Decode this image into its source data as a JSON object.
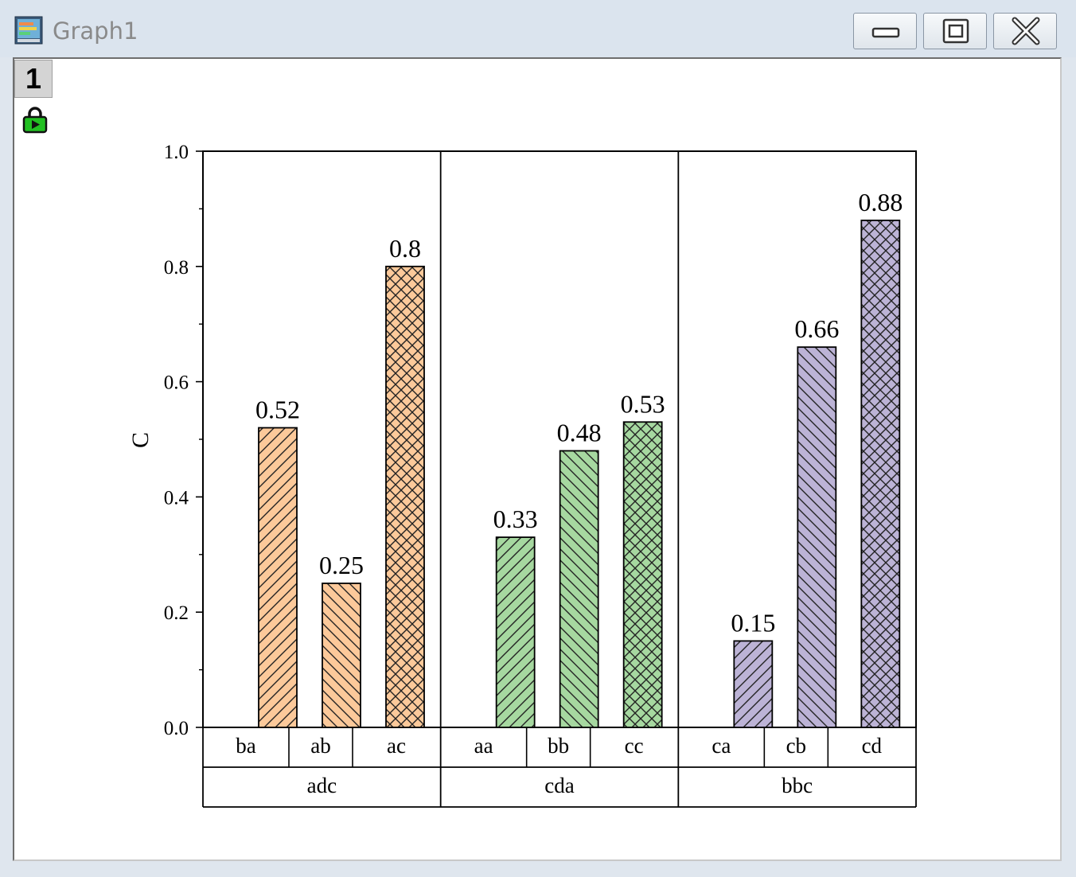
{
  "window": {
    "title": "Graph1",
    "layer_label": "1"
  },
  "chart_data": {
    "type": "bar",
    "ylabel": "C",
    "ylim": [
      0,
      1.0
    ],
    "yticks": [
      "0.0",
      "0.2",
      "0.4",
      "0.6",
      "0.8",
      "1.0"
    ],
    "groups": [
      {
        "name": "adc",
        "color": "#fcc99a",
        "bars": [
          {
            "category": "ba",
            "value": 0.52,
            "label": "0.52",
            "pattern": "diag-up"
          },
          {
            "category": "ab",
            "value": 0.25,
            "label": "0.25",
            "pattern": "diag-down"
          },
          {
            "category": "ac",
            "value": 0.8,
            "label": "0.8",
            "pattern": "cross"
          }
        ]
      },
      {
        "name": "cda",
        "color": "#a6d8a0",
        "bars": [
          {
            "category": "aa",
            "value": 0.33,
            "label": "0.33",
            "pattern": "diag-up"
          },
          {
            "category": "bb",
            "value": 0.48,
            "label": "0.48",
            "pattern": "diag-down"
          },
          {
            "category": "cc",
            "value": 0.53,
            "label": "0.53",
            "pattern": "cross"
          }
        ]
      },
      {
        "name": "bbc",
        "color": "#bcb3d6",
        "bars": [
          {
            "category": "ca",
            "value": 0.15,
            "label": "0.15",
            "pattern": "diag-up"
          },
          {
            "category": "cb",
            "value": 0.66,
            "label": "0.66",
            "pattern": "diag-down"
          },
          {
            "category": "cd",
            "value": 0.88,
            "label": "0.88",
            "pattern": "cross"
          }
        ]
      }
    ]
  }
}
